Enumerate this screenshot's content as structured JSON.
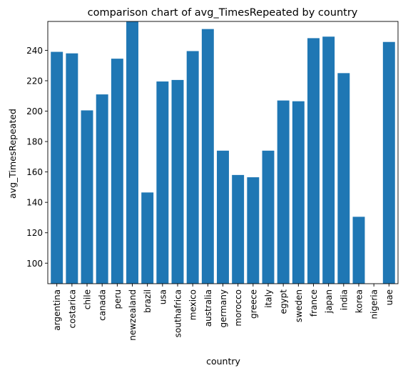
{
  "chart_data": {
    "type": "bar",
    "title": "comparison chart of avg_TimesRepeated by country",
    "xlabel": "country",
    "ylabel": "avg_TimesRepeated",
    "categories": [
      "argentina",
      "costarica",
      "chile",
      "canada",
      "peru",
      "newzealand",
      "brazil",
      "usa",
      "southafrica",
      "mexico",
      "australia",
      "germany",
      "morocco",
      "greece",
      "italy",
      "egypt",
      "sweden",
      "france",
      "japan",
      "india",
      "korea",
      "nigeria",
      "uae"
    ],
    "values": [
      239,
      238,
      200.5,
      211,
      234.5,
      259,
      146.5,
      219.5,
      220.5,
      239.5,
      254,
      174,
      158,
      156.5,
      174,
      207,
      206.5,
      248,
      249,
      225,
      130.5,
      85,
      245.5
    ],
    "ylim": [
      86.5,
      259
    ],
    "yticks": [
      100,
      120,
      140,
      160,
      180,
      200,
      220,
      240
    ],
    "grid": false,
    "bar_color": "#1f77b4"
  }
}
